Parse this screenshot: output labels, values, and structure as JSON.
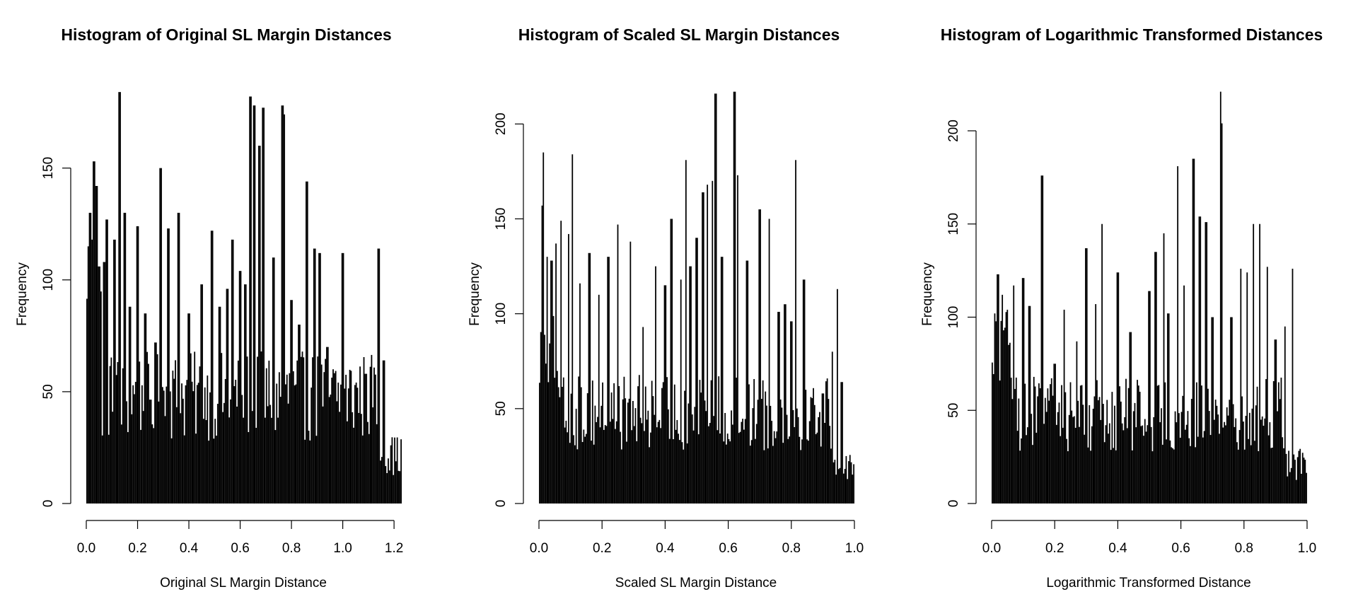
{
  "chart_data": [
    {
      "type": "bar",
      "title": "Histogram of Original SL Margin Distances",
      "xlabel": "Original SL Margin Distance",
      "ylabel": "Frequency",
      "xlim": [
        0,
        1.23
      ],
      "ylim": [
        0,
        185
      ],
      "xticks": [
        "0.0",
        "0.2",
        "0.4",
        "0.6",
        "0.8",
        "1.0",
        "1.2"
      ],
      "xtick_values": [
        0,
        0.2,
        0.4,
        0.6,
        0.8,
        1.0,
        1.2
      ],
      "yticks": [
        "0",
        "50",
        "100",
        "150"
      ],
      "ytick_values": [
        0,
        50,
        100,
        150
      ],
      "grid": false,
      "bin_width": 0.005,
      "peaks": [
        [
          0.005,
          45
        ],
        [
          0.01,
          115
        ],
        [
          0.015,
          130
        ],
        [
          0.02,
          118
        ],
        [
          0.03,
          153
        ],
        [
          0.04,
          142
        ],
        [
          0.05,
          106
        ],
        [
          0.07,
          108
        ],
        [
          0.08,
          127
        ],
        [
          0.11,
          118
        ],
        [
          0.13,
          184
        ],
        [
          0.15,
          130
        ],
        [
          0.17,
          88
        ],
        [
          0.2,
          124
        ],
        [
          0.23,
          85
        ],
        [
          0.27,
          72
        ],
        [
          0.29,
          150
        ],
        [
          0.32,
          123
        ],
        [
          0.36,
          130
        ],
        [
          0.4,
          85
        ],
        [
          0.45,
          98
        ],
        [
          0.49,
          122
        ],
        [
          0.52,
          88
        ],
        [
          0.55,
          96
        ],
        [
          0.57,
          118
        ],
        [
          0.6,
          104
        ],
        [
          0.62,
          98
        ],
        [
          0.64,
          182
        ],
        [
          0.655,
          178
        ],
        [
          0.675,
          160
        ],
        [
          0.69,
          177
        ],
        [
          0.73,
          110
        ],
        [
          0.765,
          178
        ],
        [
          0.77,
          174
        ],
        [
          0.8,
          91
        ],
        [
          0.83,
          80
        ],
        [
          0.86,
          144
        ],
        [
          0.89,
          114
        ],
        [
          0.91,
          112
        ],
        [
          0.94,
          70
        ],
        [
          1.0,
          112
        ],
        [
          1.05,
          53
        ],
        [
          1.09,
          58
        ],
        [
          1.12,
          43
        ],
        [
          1.14,
          114
        ],
        [
          1.16,
          64
        ],
        [
          1.19,
          26
        ],
        [
          1.21,
          12
        ]
      ]
    },
    {
      "type": "bar",
      "title": "Histogram of Scaled SL Margin Distances",
      "xlabel": "Scaled SL Margin Distance",
      "ylabel": "Frequency",
      "xlim": [
        0,
        1.0
      ],
      "ylim": [
        0,
        218
      ],
      "xticks": [
        "0.0",
        "0.2",
        "0.4",
        "0.6",
        "0.8",
        "1.0"
      ],
      "xtick_values": [
        0,
        0.2,
        0.4,
        0.6,
        0.8,
        1.0
      ],
      "yticks": [
        "0",
        "50",
        "100",
        "150",
        "200"
      ],
      "ytick_values": [
        0,
        50,
        100,
        150,
        200
      ],
      "grid": false,
      "bin_width": 0.004,
      "peaks": [
        [
          0.004,
          45
        ],
        [
          0.01,
          157
        ],
        [
          0.015,
          185
        ],
        [
          0.025,
          130
        ],
        [
          0.04,
          128
        ],
        [
          0.055,
          137
        ],
        [
          0.07,
          149
        ],
        [
          0.095,
          142
        ],
        [
          0.105,
          184
        ],
        [
          0.13,
          116
        ],
        [
          0.16,
          132
        ],
        [
          0.19,
          110
        ],
        [
          0.22,
          130
        ],
        [
          0.25,
          147
        ],
        [
          0.29,
          138
        ],
        [
          0.33,
          93
        ],
        [
          0.37,
          125
        ],
        [
          0.4,
          115
        ],
        [
          0.42,
          150
        ],
        [
          0.45,
          118
        ],
        [
          0.465,
          181
        ],
        [
          0.48,
          125
        ],
        [
          0.5,
          140
        ],
        [
          0.52,
          164
        ],
        [
          0.535,
          168
        ],
        [
          0.55,
          170
        ],
        [
          0.56,
          216
        ],
        [
          0.58,
          130
        ],
        [
          0.62,
          217
        ],
        [
          0.63,
          173
        ],
        [
          0.66,
          128
        ],
        [
          0.7,
          155
        ],
        [
          0.73,
          150
        ],
        [
          0.76,
          101
        ],
        [
          0.78,
          105
        ],
        [
          0.8,
          96
        ],
        [
          0.815,
          181
        ],
        [
          0.84,
          118
        ],
        [
          0.87,
          58
        ],
        [
          0.9,
          58
        ],
        [
          0.93,
          80
        ],
        [
          0.945,
          113
        ],
        [
          0.96,
          64
        ],
        [
          0.975,
          25
        ],
        [
          0.99,
          13
        ]
      ]
    },
    {
      "type": "bar",
      "title": "Histogram of Logarithmic Transformed Distances",
      "xlabel": "Logarithmic Transformed Distance",
      "ylabel": "Frequency",
      "xlim": [
        0,
        1.0
      ],
      "ylim": [
        0,
        222
      ],
      "xticks": [
        "0.0",
        "0.2",
        "0.4",
        "0.6",
        "0.8",
        "1.0"
      ],
      "xtick_values": [
        0,
        0.2,
        0.4,
        0.6,
        0.8,
        1.0
      ],
      "yticks": [
        "0",
        "50",
        "100",
        "150",
        "200"
      ],
      "ytick_values": [
        0,
        50,
        100,
        150,
        200
      ],
      "grid": false,
      "bin_width": 0.004,
      "peaks": [
        [
          0.004,
          28
        ],
        [
          0.01,
          102
        ],
        [
          0.02,
          123
        ],
        [
          0.035,
          112
        ],
        [
          0.05,
          104
        ],
        [
          0.07,
          117
        ],
        [
          0.1,
          121
        ],
        [
          0.12,
          106
        ],
        [
          0.16,
          176
        ],
        [
          0.2,
          75
        ],
        [
          0.23,
          104
        ],
        [
          0.27,
          87
        ],
        [
          0.3,
          137
        ],
        [
          0.33,
          107
        ],
        [
          0.35,
          150
        ],
        [
          0.4,
          124
        ],
        [
          0.44,
          92
        ],
        [
          0.5,
          114
        ],
        [
          0.52,
          135
        ],
        [
          0.545,
          145
        ],
        [
          0.56,
          102
        ],
        [
          0.59,
          181
        ],
        [
          0.61,
          117
        ],
        [
          0.64,
          185
        ],
        [
          0.66,
          154
        ],
        [
          0.68,
          151
        ],
        [
          0.7,
          100
        ],
        [
          0.725,
          221
        ],
        [
          0.73,
          204
        ],
        [
          0.76,
          100
        ],
        [
          0.79,
          126
        ],
        [
          0.81,
          124
        ],
        [
          0.83,
          150
        ],
        [
          0.85,
          150
        ],
        [
          0.875,
          127
        ],
        [
          0.9,
          88
        ],
        [
          0.93,
          95
        ],
        [
          0.955,
          126
        ],
        [
          0.975,
          27
        ],
        [
          0.99,
          13
        ]
      ]
    }
  ]
}
